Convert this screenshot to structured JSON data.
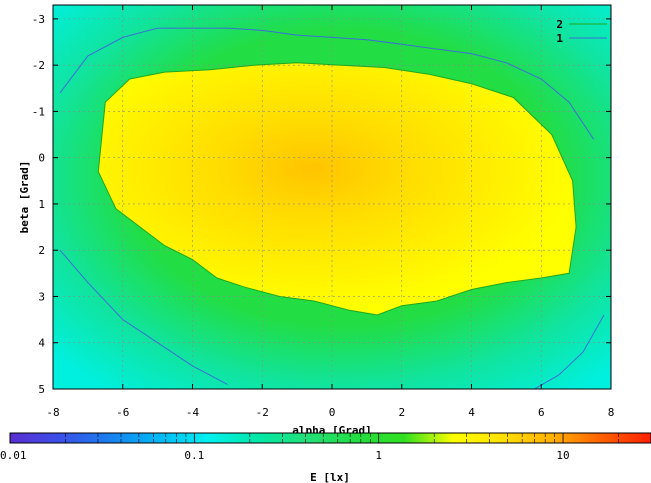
{
  "chart_data": {
    "type": "heatmap",
    "xlabel": "alpha [Grad]",
    "ylabel": "beta [Grad]",
    "xlim": [
      -8,
      8
    ],
    "ylim": [
      -3.3,
      5
    ],
    "y_inverted": true,
    "xticks": [
      "-8",
      "-6",
      "-4",
      "-2",
      "0",
      "2",
      "4",
      "6",
      "8"
    ],
    "yticks": [
      "-3",
      "-2",
      "-1",
      "0",
      "1",
      "2",
      "3",
      "4",
      "5"
    ],
    "grid": true,
    "legend_position": "top-right",
    "contour_levels": [
      {
        "name": "2",
        "value": 2,
        "color": "#1fa81f"
      },
      {
        "name": "1",
        "value": 1,
        "color": "#3b6fd6"
      }
    ],
    "contour_level_2": {
      "x": [
        -6.7,
        -6.5,
        -5.8,
        -4.8,
        -3.5,
        -2.2,
        -1.0,
        0.2,
        1.5,
        2.8,
        4.0,
        5.2,
        6.3,
        6.9,
        7.0,
        6.8,
        6.0,
        5.0,
        4.0,
        3.0,
        2.0,
        1.3,
        0.5,
        -0.5,
        -1.5,
        -2.5,
        -3.3,
        -4.0,
        -4.8,
        -5.5,
        -6.2,
        -6.7
      ],
      "y": [
        0.3,
        -1.2,
        -1.7,
        -1.85,
        -1.9,
        -2.0,
        -2.05,
        -2.0,
        -1.95,
        -1.8,
        -1.6,
        -1.3,
        -0.5,
        0.5,
        1.5,
        2.5,
        2.6,
        2.7,
        2.85,
        3.1,
        3.2,
        3.4,
        3.3,
        3.1,
        3.0,
        2.8,
        2.6,
        2.2,
        1.9,
        1.5,
        1.1,
        0.3
      ]
    },
    "contour_level_1_upper": {
      "x": [
        -7.8,
        -7.0,
        -6.0,
        -5.0,
        -4.0,
        -3.0,
        -2.0,
        -1.0,
        0.0,
        1.0,
        2.0,
        3.0,
        4.0,
        5.0,
        6.0,
        6.8,
        7.5
      ],
      "y": [
        -1.4,
        -2.2,
        -2.6,
        -2.8,
        -2.8,
        -2.8,
        -2.75,
        -2.65,
        -2.6,
        -2.55,
        -2.45,
        -2.35,
        -2.25,
        -2.05,
        -1.7,
        -1.2,
        -0.4
      ]
    },
    "contour_level_1_lower_left": {
      "x": [
        -7.8,
        -7.0,
        -6.0,
        -5.0,
        -4.0,
        -3.0
      ],
      "y": [
        2.0,
        2.7,
        3.5,
        4.0,
        4.5,
        4.9
      ]
    },
    "contour_level_1_lower_right": {
      "x": [
        5.8,
        6.5,
        7.2,
        7.8
      ],
      "y": [
        5.0,
        4.7,
        4.2,
        3.4
      ]
    },
    "colorbar": {
      "label": "E [lx]",
      "scale": "log",
      "range": [
        0.01,
        30
      ],
      "tick_labels": [
        "0.01",
        "0.1",
        "1",
        "10"
      ],
      "tick_values": [
        0.01,
        0.1,
        1,
        10
      ],
      "colors": [
        "#5a2ed1",
        "#3a4fe8",
        "#1a7ef0",
        "#00b8f5",
        "#00f0f0",
        "#00e8a8",
        "#22e07a",
        "#22dd44",
        "#30e020",
        "#ffff00",
        "#ffe000",
        "#ffb000",
        "#ff6000",
        "#ff2000"
      ]
    },
    "field_colors": {
      "outer": "#00f0d0",
      "mid": "#22dd44",
      "inner": "#ffff00",
      "peak": "#ffc800"
    }
  }
}
